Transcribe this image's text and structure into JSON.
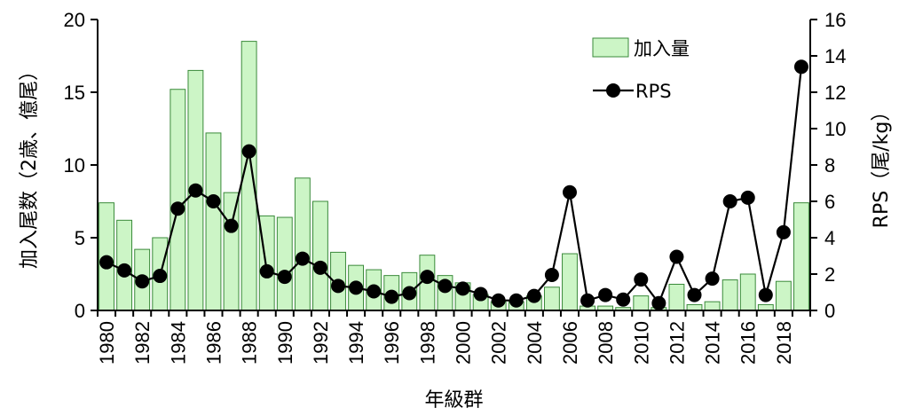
{
  "chart_data": {
    "type": "bar",
    "categories": [
      "1980",
      "1981",
      "1982",
      "1983",
      "1984",
      "1985",
      "1986",
      "1987",
      "1988",
      "1989",
      "1990",
      "1991",
      "1992",
      "1993",
      "1994",
      "1995",
      "1996",
      "1997",
      "1998",
      "1999",
      "2000",
      "2001",
      "2002",
      "2003",
      "2004",
      "2005",
      "2006",
      "2007",
      "2008",
      "2009",
      "2010",
      "2011",
      "2012",
      "2013",
      "2014",
      "2015",
      "2016",
      "2017",
      "2018",
      "2019"
    ],
    "x_tick_labels": [
      "1980",
      "1982",
      "1984",
      "1986",
      "1988",
      "1990",
      "1992",
      "1994",
      "1996",
      "1998",
      "2000",
      "2002",
      "2004",
      "2006",
      "2008",
      "2010",
      "2012",
      "2014",
      "2016",
      "2018"
    ],
    "series": [
      {
        "name": "加入量",
        "type": "bar",
        "axis": "left",
        "color": "#ccf5c6",
        "edge_color": "#3a8a3a",
        "values": [
          7.4,
          6.2,
          4.2,
          5.0,
          15.2,
          16.5,
          12.2,
          8.1,
          18.5,
          6.5,
          6.4,
          9.1,
          7.5,
          4.0,
          3.1,
          2.8,
          2.4,
          2.6,
          3.8,
          2.4,
          1.9,
          1.1,
          0.6,
          0.6,
          1.0,
          1.6,
          3.9,
          0.3,
          0.3,
          0.2,
          1.0,
          0.2,
          1.8,
          0.4,
          0.6,
          2.1,
          2.5,
          0.4,
          2.0,
          7.4
        ]
      },
      {
        "name": "RPS",
        "type": "line",
        "axis": "right",
        "color": "#000000",
        "values": [
          2.65,
          2.2,
          1.6,
          1.9,
          5.6,
          6.6,
          6.0,
          4.65,
          8.75,
          2.15,
          1.85,
          2.85,
          2.35,
          1.35,
          1.25,
          1.05,
          0.75,
          0.95,
          1.85,
          1.35,
          1.2,
          0.9,
          0.55,
          0.55,
          0.8,
          1.95,
          6.5,
          0.55,
          0.85,
          0.6,
          1.7,
          0.4,
          2.95,
          0.85,
          1.75,
          6.0,
          6.2,
          0.85,
          4.3,
          13.4
        ]
      }
    ],
    "left_axis": {
      "label": "加入尾数（2歳、億尾）",
      "ylim": [
        0,
        20
      ],
      "ticks": [
        0,
        5,
        10,
        15,
        20
      ]
    },
    "right_axis": {
      "label": "RPS（尾/kg）",
      "ylim": [
        0,
        16
      ],
      "ticks": [
        0,
        2,
        4,
        6,
        8,
        10,
        12,
        14,
        16
      ]
    },
    "xlabel": "年級群",
    "legend": {
      "placement": "top-right"
    },
    "grid": false
  }
}
